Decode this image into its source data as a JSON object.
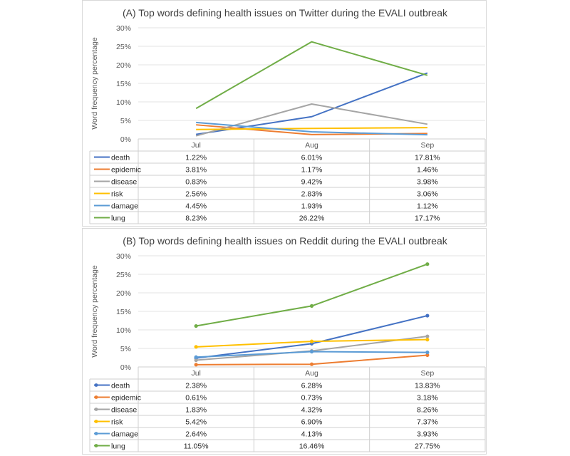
{
  "chart_data": [
    {
      "type": "line",
      "title": "(A) Top words defining health issues on Twitter during the EVALI outbreak",
      "ylabel": "Word frequency percentage",
      "ylim": [
        0,
        30
      ],
      "yticks": [
        "0%",
        "5%",
        "10%",
        "15%",
        "20%",
        "25%",
        "30%"
      ],
      "categories": [
        "Jul",
        "Aug",
        "Sep"
      ],
      "markers": false,
      "series": [
        {
          "name": "death",
          "color": "#4472c4",
          "values": [
            1.22,
            6.01,
            17.81
          ],
          "labels": [
            "1.22%",
            "6.01%",
            "17.81%"
          ]
        },
        {
          "name": "epidemic",
          "color": "#ed7d31",
          "values": [
            3.81,
            1.17,
            1.46
          ],
          "labels": [
            "3.81%",
            "1.17%",
            "1.46%"
          ]
        },
        {
          "name": "disease",
          "color": "#a5a5a5",
          "values": [
            0.83,
            9.42,
            3.98
          ],
          "labels": [
            "0.83%",
            "9.42%",
            "3.98%"
          ]
        },
        {
          "name": "risk",
          "color": "#ffc000",
          "values": [
            2.56,
            2.83,
            3.06
          ],
          "labels": [
            "2.56%",
            "2.83%",
            "3.06%"
          ]
        },
        {
          "name": "damage",
          "color": "#5b9bd5",
          "values": [
            4.45,
            1.93,
            1.12
          ],
          "labels": [
            "4.45%",
            "1.93%",
            "1.12%"
          ]
        },
        {
          "name": "lung",
          "color": "#70ad47",
          "values": [
            8.23,
            26.22,
            17.17
          ],
          "labels": [
            "8.23%",
            "26.22%",
            "17.17%"
          ]
        }
      ]
    },
    {
      "type": "line",
      "title": "(B) Top words defining health issues on Reddit during the EVALI outbreak",
      "ylabel": "Word frequency percentage",
      "ylim": [
        0,
        30
      ],
      "yticks": [
        "0%",
        "5%",
        "10%",
        "15%",
        "20%",
        "25%",
        "30%"
      ],
      "categories": [
        "Jul",
        "Aug",
        "Sep"
      ],
      "markers": true,
      "series": [
        {
          "name": "death",
          "color": "#4472c4",
          "values": [
            2.38,
            6.28,
            13.83
          ],
          "labels": [
            "2.38%",
            "6.28%",
            "13.83%"
          ]
        },
        {
          "name": "epidemic",
          "color": "#ed7d31",
          "values": [
            0.61,
            0.73,
            3.18
          ],
          "labels": [
            "0.61%",
            "0.73%",
            "3.18%"
          ]
        },
        {
          "name": "disease",
          "color": "#a5a5a5",
          "values": [
            1.83,
            4.32,
            8.26
          ],
          "labels": [
            "1.83%",
            "4.32%",
            "8.26%"
          ]
        },
        {
          "name": "risk",
          "color": "#ffc000",
          "values": [
            5.42,
            6.9,
            7.37
          ],
          "labels": [
            "5.42%",
            "6.90%",
            "7.37%"
          ]
        },
        {
          "name": "damage",
          "color": "#5b9bd5",
          "values": [
            2.64,
            4.13,
            3.93
          ],
          "labels": [
            "2.64%",
            "4.13%",
            "3.93%"
          ]
        },
        {
          "name": "lung",
          "color": "#70ad47",
          "values": [
            11.05,
            16.46,
            27.75
          ],
          "labels": [
            "11.05%",
            "16.46%",
            "27.75%"
          ]
        }
      ]
    }
  ]
}
